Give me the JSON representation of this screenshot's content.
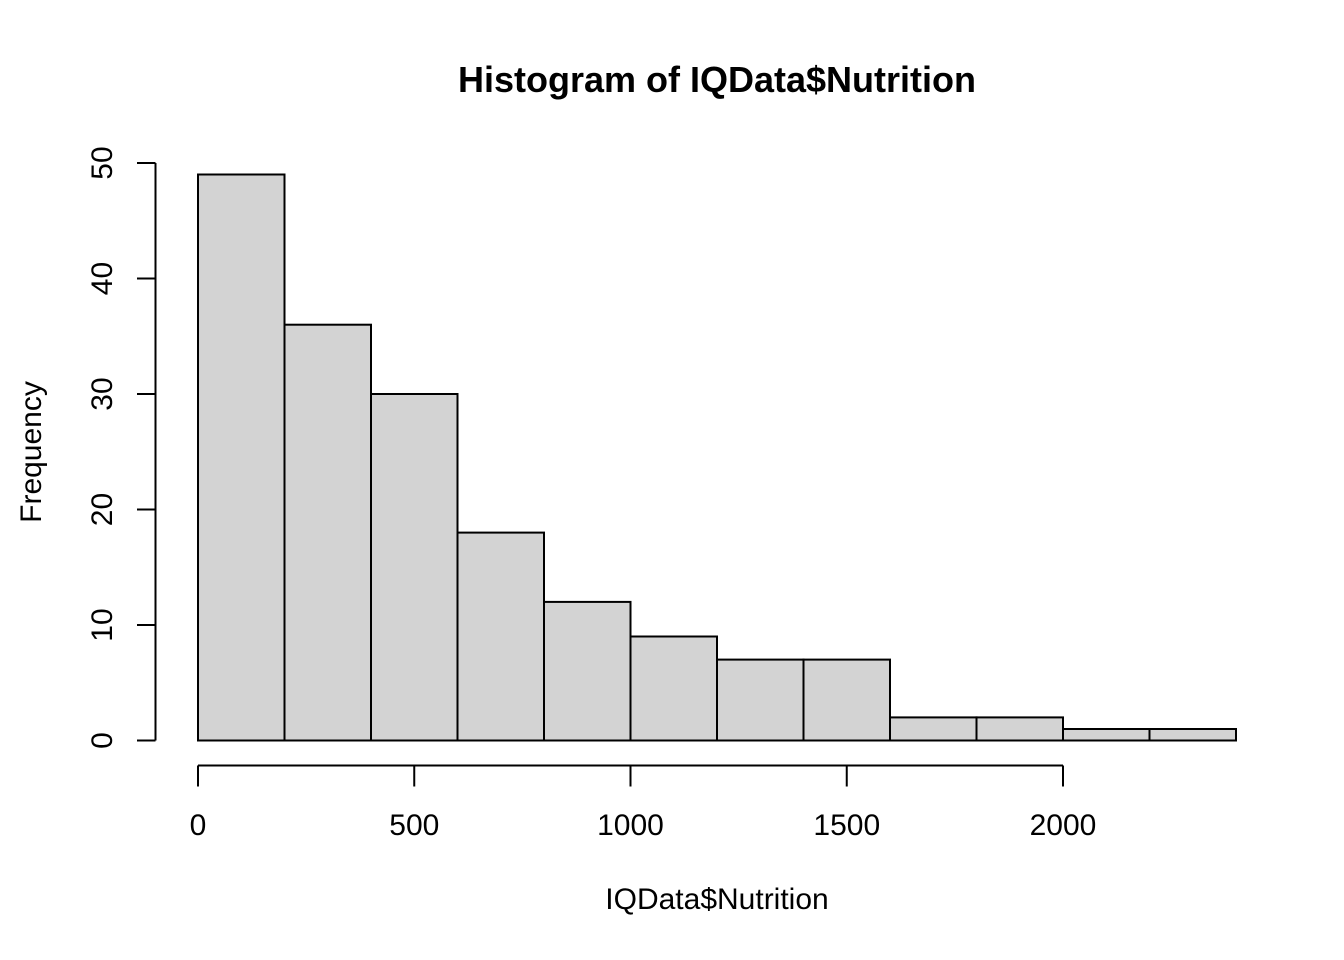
{
  "chart_data": {
    "type": "bar",
    "variant": "histogram",
    "title": "Histogram of IQData$Nutrition",
    "xlabel": "IQData$Nutrition",
    "ylabel": "Frequency",
    "bins": {
      "breaks": [
        0,
        200,
        400,
        600,
        800,
        1000,
        1200,
        1400,
        1600,
        1800,
        2000,
        2200,
        2400
      ],
      "counts": [
        49,
        36,
        30,
        18,
        12,
        9,
        7,
        7,
        2,
        2,
        1,
        1
      ]
    },
    "x_ticks": [
      0,
      500,
      1000,
      1500,
      2000
    ],
    "y_ticks": [
      0,
      10,
      20,
      30,
      40,
      50
    ],
    "xlim": [
      0,
      2400
    ],
    "ylim": [
      0,
      50
    ],
    "grid": false,
    "legend": false,
    "colors": {
      "bar_fill": "#D3D3D3",
      "bar_stroke": "#000000",
      "axis": "#000000",
      "text": "#000000",
      "background": "#FFFFFF"
    }
  }
}
